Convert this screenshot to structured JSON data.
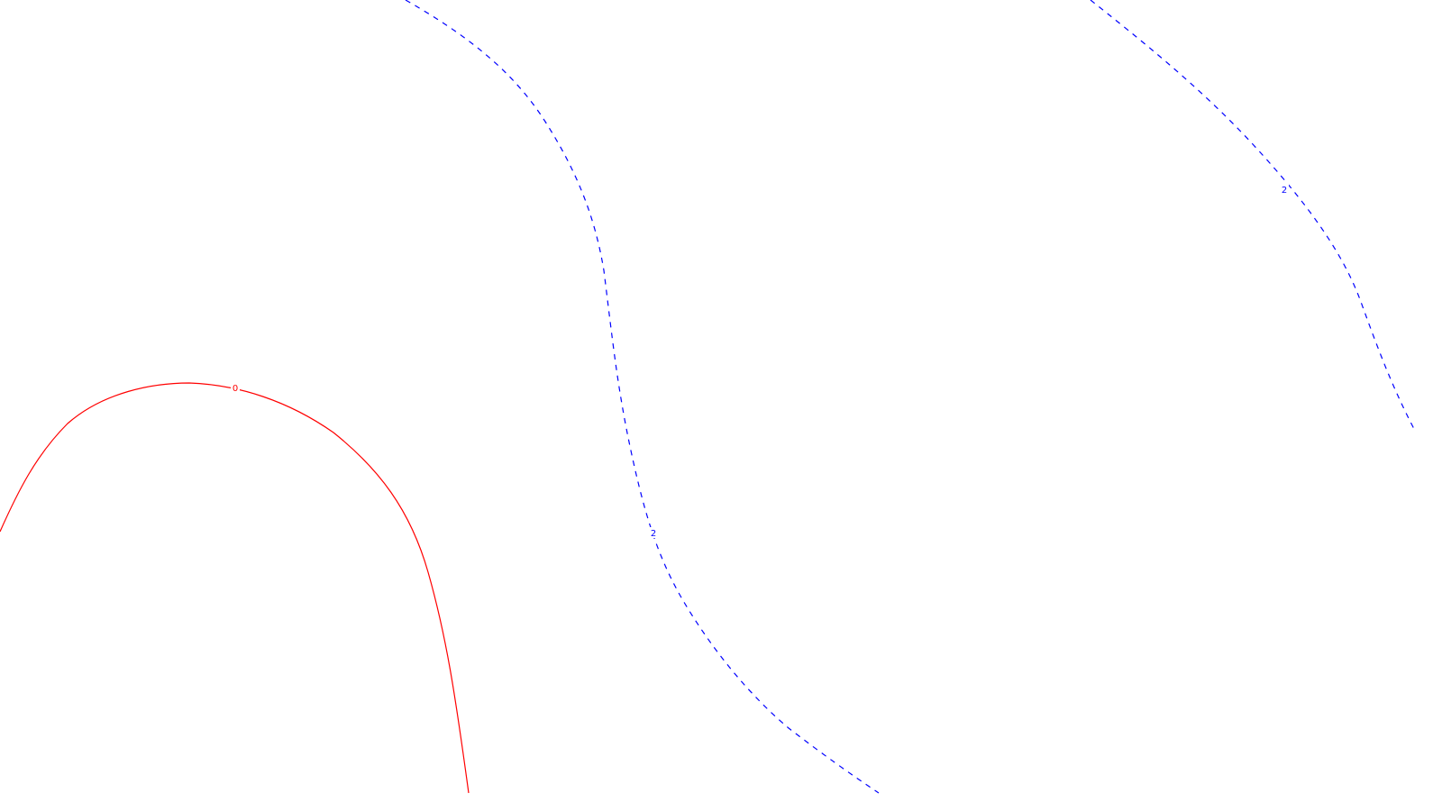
{
  "map": {
    "background_color": "#ffffff",
    "contours": [
      {
        "id": "zero",
        "label": "0",
        "color": "#ff0000",
        "style": "solid"
      },
      {
        "id": "two-middle",
        "label": "2",
        "color": "#0000ff",
        "style": "dashed"
      },
      {
        "id": "two-right",
        "label": "2",
        "color": "#0000ff",
        "style": "dashed"
      }
    ]
  }
}
